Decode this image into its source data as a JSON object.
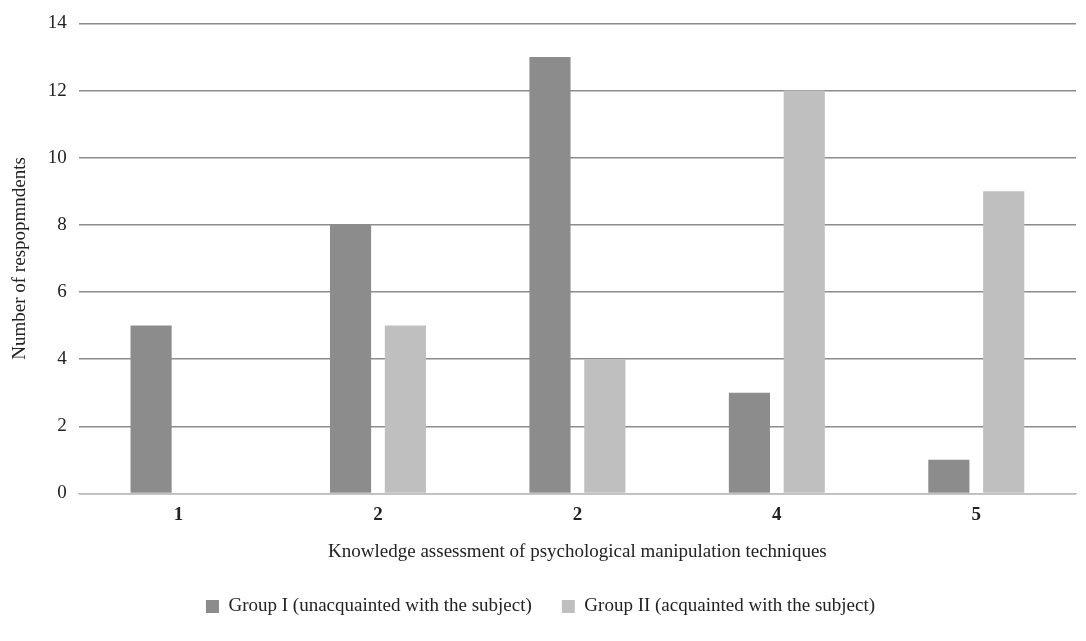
{
  "chart_data": {
    "type": "bar",
    "xlabel": "Knowledge assessment of psychological manipulation techniques",
    "ylabel": "Number of respopmndents",
    "categories": [
      "1",
      "2",
      "2",
      "4",
      "5"
    ],
    "series": [
      {
        "name": "Group I (unacquainted with the subject)",
        "color": "#8c8c8c",
        "values": [
          5,
          8,
          13,
          3,
          1
        ]
      },
      {
        "name": "Group II (acquainted with the subject)",
        "color": "#bfbfbf",
        "values": [
          0,
          5,
          4,
          12,
          9
        ]
      }
    ],
    "ylim": [
      0,
      14
    ],
    "yticks": [
      0,
      2,
      4,
      6,
      8,
      10,
      12,
      14
    ],
    "grid": "y",
    "legend": "bottom"
  }
}
